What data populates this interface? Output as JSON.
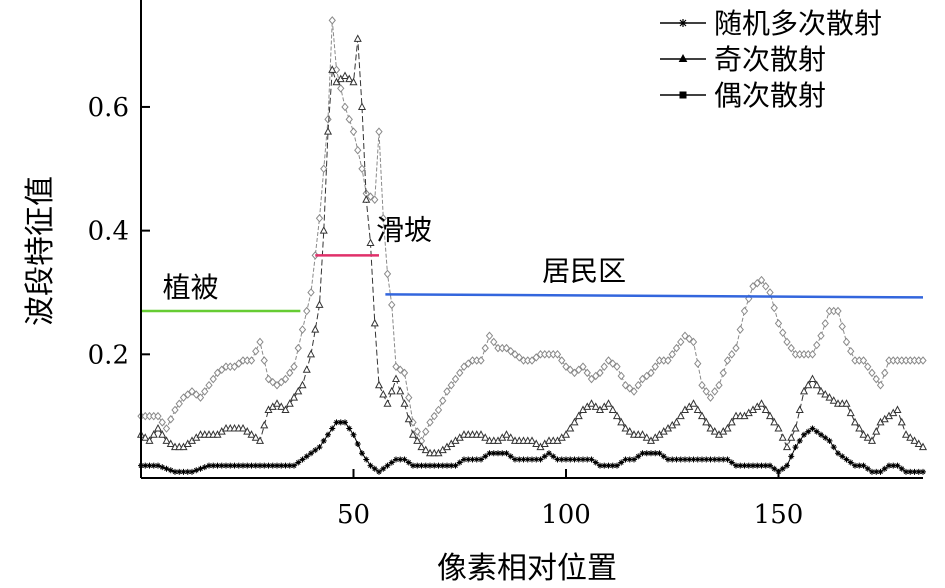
{
  "chart_data": {
    "type": "line",
    "xlabel": "像素相对位置",
    "ylabel": "波段特征值",
    "xlim": [
      0,
      184
    ],
    "ylim": [
      0,
      0.76
    ],
    "xticks": [
      50,
      100,
      150
    ],
    "yticks": [
      0.2,
      0.4,
      0.6
    ],
    "tick_labels": {
      "x": [
        "50",
        "100",
        "150"
      ],
      "y": [
        "0.2",
        "0.4",
        "0.6"
      ]
    },
    "grid": false,
    "legend_position": "top-right",
    "legend": [
      "随机多次散射",
      "奇次散射",
      "偶次散射"
    ],
    "series": [
      {
        "name": "随机多次散射",
        "marker": "diamond",
        "color": "#8a8a8a",
        "knots": [
          [
            0,
            0.1
          ],
          [
            4,
            0.1
          ],
          [
            6,
            0.08
          ],
          [
            8,
            0.11
          ],
          [
            10,
            0.13
          ],
          [
            12,
            0.14
          ],
          [
            14,
            0.13
          ],
          [
            16,
            0.15
          ],
          [
            18,
            0.17
          ],
          [
            20,
            0.18
          ],
          [
            22,
            0.18
          ],
          [
            24,
            0.19
          ],
          [
            26,
            0.19
          ],
          [
            28,
            0.22
          ],
          [
            30,
            0.16
          ],
          [
            32,
            0.15
          ],
          [
            34,
            0.16
          ],
          [
            36,
            0.18
          ],
          [
            38,
            0.24
          ],
          [
            40,
            0.3
          ],
          [
            42,
            0.42
          ],
          [
            44,
            0.58
          ],
          [
            45,
            0.74
          ],
          [
            46,
            0.66
          ],
          [
            48,
            0.6
          ],
          [
            50,
            0.56
          ],
          [
            52,
            0.5
          ],
          [
            53,
            0.46
          ],
          [
            55,
            0.45
          ],
          [
            56,
            0.56
          ],
          [
            57,
            0.42
          ],
          [
            58,
            0.33
          ],
          [
            59,
            0.28
          ],
          [
            60,
            0.18
          ],
          [
            62,
            0.17
          ],
          [
            64,
            0.09
          ],
          [
            66,
            0.06
          ],
          [
            68,
            0.09
          ],
          [
            70,
            0.11
          ],
          [
            72,
            0.14
          ],
          [
            74,
            0.16
          ],
          [
            76,
            0.18
          ],
          [
            78,
            0.19
          ],
          [
            80,
            0.19
          ],
          [
            82,
            0.23
          ],
          [
            84,
            0.21
          ],
          [
            86,
            0.21
          ],
          [
            88,
            0.2
          ],
          [
            90,
            0.19
          ],
          [
            92,
            0.19
          ],
          [
            94,
            0.2
          ],
          [
            96,
            0.2
          ],
          [
            98,
            0.2
          ],
          [
            100,
            0.18
          ],
          [
            102,
            0.17
          ],
          [
            104,
            0.18
          ],
          [
            106,
            0.16
          ],
          [
            108,
            0.17
          ],
          [
            110,
            0.19
          ],
          [
            112,
            0.18
          ],
          [
            114,
            0.15
          ],
          [
            116,
            0.14
          ],
          [
            118,
            0.16
          ],
          [
            120,
            0.17
          ],
          [
            122,
            0.19
          ],
          [
            124,
            0.19
          ],
          [
            126,
            0.21
          ],
          [
            128,
            0.23
          ],
          [
            130,
            0.22
          ],
          [
            132,
            0.15
          ],
          [
            134,
            0.13
          ],
          [
            136,
            0.15
          ],
          [
            138,
            0.19
          ],
          [
            140,
            0.21
          ],
          [
            142,
            0.27
          ],
          [
            144,
            0.31
          ],
          [
            146,
            0.32
          ],
          [
            148,
            0.3
          ],
          [
            150,
            0.25
          ],
          [
            152,
            0.22
          ],
          [
            154,
            0.2
          ],
          [
            156,
            0.2
          ],
          [
            158,
            0.2
          ],
          [
            160,
            0.23
          ],
          [
            162,
            0.27
          ],
          [
            164,
            0.27
          ],
          [
            166,
            0.22
          ],
          [
            168,
            0.19
          ],
          [
            170,
            0.19
          ],
          [
            172,
            0.17
          ],
          [
            174,
            0.15
          ],
          [
            176,
            0.19
          ],
          [
            178,
            0.19
          ],
          [
            184,
            0.19
          ]
        ]
      },
      {
        "name": "奇次散射",
        "marker": "triangle",
        "color": "#333333",
        "knots": [
          [
            0,
            0.07
          ],
          [
            2,
            0.06
          ],
          [
            4,
            0.08
          ],
          [
            6,
            0.06
          ],
          [
            8,
            0.05
          ],
          [
            10,
            0.05
          ],
          [
            12,
            0.06
          ],
          [
            14,
            0.07
          ],
          [
            16,
            0.07
          ],
          [
            18,
            0.07
          ],
          [
            20,
            0.08
          ],
          [
            22,
            0.08
          ],
          [
            24,
            0.08
          ],
          [
            26,
            0.07
          ],
          [
            28,
            0.06
          ],
          [
            30,
            0.11
          ],
          [
            32,
            0.12
          ],
          [
            34,
            0.11
          ],
          [
            36,
            0.13
          ],
          [
            38,
            0.15
          ],
          [
            40,
            0.2
          ],
          [
            42,
            0.28
          ],
          [
            43,
            0.4
          ],
          [
            44,
            0.56
          ],
          [
            45,
            0.66
          ],
          [
            46,
            0.64
          ],
          [
            48,
            0.65
          ],
          [
            50,
            0.64
          ],
          [
            51,
            0.71
          ],
          [
            52,
            0.6
          ],
          [
            53,
            0.45
          ],
          [
            54,
            0.38
          ],
          [
            55,
            0.25
          ],
          [
            56,
            0.15
          ],
          [
            58,
            0.12
          ],
          [
            60,
            0.16
          ],
          [
            62,
            0.12
          ],
          [
            64,
            0.07
          ],
          [
            66,
            0.05
          ],
          [
            68,
            0.04
          ],
          [
            70,
            0.04
          ],
          [
            72,
            0.05
          ],
          [
            74,
            0.06
          ],
          [
            76,
            0.07
          ],
          [
            78,
            0.07
          ],
          [
            80,
            0.07
          ],
          [
            82,
            0.06
          ],
          [
            84,
            0.06
          ],
          [
            86,
            0.07
          ],
          [
            88,
            0.06
          ],
          [
            90,
            0.06
          ],
          [
            92,
            0.06
          ],
          [
            94,
            0.05
          ],
          [
            96,
            0.06
          ],
          [
            98,
            0.06
          ],
          [
            100,
            0.07
          ],
          [
            102,
            0.09
          ],
          [
            104,
            0.11
          ],
          [
            106,
            0.12
          ],
          [
            108,
            0.11
          ],
          [
            110,
            0.12
          ],
          [
            112,
            0.1
          ],
          [
            114,
            0.08
          ],
          [
            116,
            0.07
          ],
          [
            118,
            0.07
          ],
          [
            120,
            0.06
          ],
          [
            122,
            0.07
          ],
          [
            124,
            0.08
          ],
          [
            126,
            0.09
          ],
          [
            128,
            0.11
          ],
          [
            130,
            0.12
          ],
          [
            132,
            0.1
          ],
          [
            134,
            0.08
          ],
          [
            136,
            0.07
          ],
          [
            138,
            0.08
          ],
          [
            140,
            0.1
          ],
          [
            142,
            0.1
          ],
          [
            144,
            0.11
          ],
          [
            146,
            0.12
          ],
          [
            148,
            0.1
          ],
          [
            150,
            0.08
          ],
          [
            152,
            0.05
          ],
          [
            154,
            0.08
          ],
          [
            156,
            0.14
          ],
          [
            158,
            0.16
          ],
          [
            160,
            0.14
          ],
          [
            162,
            0.13
          ],
          [
            164,
            0.12
          ],
          [
            166,
            0.12
          ],
          [
            168,
            0.09
          ],
          [
            170,
            0.07
          ],
          [
            172,
            0.06
          ],
          [
            174,
            0.09
          ],
          [
            176,
            0.1
          ],
          [
            178,
            0.11
          ],
          [
            180,
            0.07
          ],
          [
            184,
            0.05
          ]
        ]
      },
      {
        "name": "偶次散射",
        "marker": "square",
        "color": "#000000",
        "knots": [
          [
            0,
            0.02
          ],
          [
            4,
            0.02
          ],
          [
            8,
            0.01
          ],
          [
            12,
            0.01
          ],
          [
            16,
            0.02
          ],
          [
            20,
            0.02
          ],
          [
            24,
            0.02
          ],
          [
            28,
            0.02
          ],
          [
            32,
            0.02
          ],
          [
            36,
            0.02
          ],
          [
            38,
            0.03
          ],
          [
            40,
            0.04
          ],
          [
            42,
            0.05
          ],
          [
            44,
            0.07
          ],
          [
            46,
            0.09
          ],
          [
            48,
            0.09
          ],
          [
            50,
            0.07
          ],
          [
            52,
            0.04
          ],
          [
            54,
            0.02
          ],
          [
            56,
            0.01
          ],
          [
            58,
            0.02
          ],
          [
            60,
            0.03
          ],
          [
            62,
            0.03
          ],
          [
            64,
            0.02
          ],
          [
            66,
            0.02
          ],
          [
            68,
            0.02
          ],
          [
            70,
            0.02
          ],
          [
            72,
            0.02
          ],
          [
            74,
            0.02
          ],
          [
            76,
            0.03
          ],
          [
            78,
            0.03
          ],
          [
            80,
            0.03
          ],
          [
            82,
            0.04
          ],
          [
            84,
            0.04
          ],
          [
            86,
            0.04
          ],
          [
            88,
            0.03
          ],
          [
            90,
            0.03
          ],
          [
            92,
            0.03
          ],
          [
            94,
            0.03
          ],
          [
            96,
            0.04
          ],
          [
            98,
            0.03
          ],
          [
            100,
            0.03
          ],
          [
            102,
            0.03
          ],
          [
            104,
            0.03
          ],
          [
            106,
            0.03
          ],
          [
            108,
            0.02
          ],
          [
            110,
            0.02
          ],
          [
            112,
            0.02
          ],
          [
            114,
            0.03
          ],
          [
            116,
            0.03
          ],
          [
            118,
            0.04
          ],
          [
            120,
            0.04
          ],
          [
            122,
            0.04
          ],
          [
            124,
            0.03
          ],
          [
            126,
            0.03
          ],
          [
            128,
            0.03
          ],
          [
            130,
            0.03
          ],
          [
            132,
            0.03
          ],
          [
            134,
            0.03
          ],
          [
            136,
            0.03
          ],
          [
            138,
            0.03
          ],
          [
            140,
            0.02
          ],
          [
            142,
            0.02
          ],
          [
            144,
            0.02
          ],
          [
            146,
            0.02
          ],
          [
            148,
            0.02
          ],
          [
            150,
            0.01
          ],
          [
            152,
            0.02
          ],
          [
            154,
            0.05
          ],
          [
            156,
            0.07
          ],
          [
            158,
            0.08
          ],
          [
            160,
            0.07
          ],
          [
            162,
            0.06
          ],
          [
            164,
            0.04
          ],
          [
            166,
            0.03
          ],
          [
            168,
            0.02
          ],
          [
            170,
            0.02
          ],
          [
            172,
            0.01
          ],
          [
            174,
            0.01
          ],
          [
            176,
            0.02
          ],
          [
            178,
            0.02
          ],
          [
            180,
            0.01
          ],
          [
            184,
            0.01
          ]
        ]
      }
    ],
    "regions": [
      {
        "label": "植被",
        "x": [
          0,
          37.5
        ],
        "y": 0.27,
        "color": "#66cc33"
      },
      {
        "label": "滑坡",
        "x": [
          41,
          56
        ],
        "y": 0.36,
        "color": "#e0306a"
      },
      {
        "label": "居民区",
        "x": [
          57.5,
          184
        ],
        "y": [
          0.297,
          0.292
        ],
        "color": "#3366dd"
      }
    ]
  }
}
